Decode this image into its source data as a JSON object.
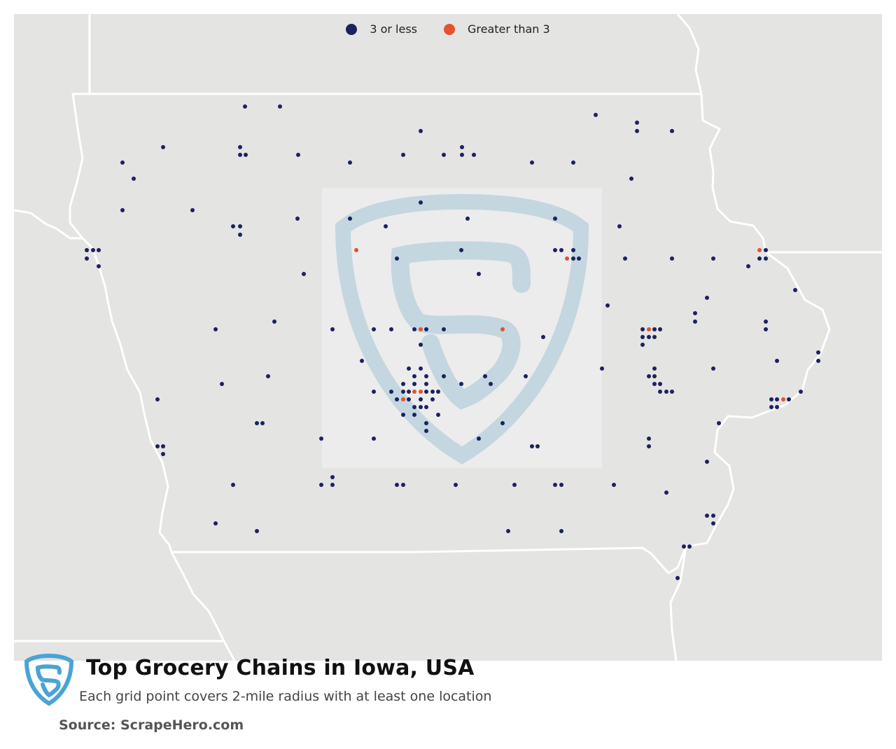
{
  "title": "Top Grocery Chains in Iowa, USA",
  "subtitle": "Each grid point covers 2-mile radius with at least one location",
  "source": "Source: ScrapeHero.com",
  "logo_icon": "scrapehero-shield-icon",
  "watermark_icon": "scrapehero-shield-watermark-icon",
  "colors": {
    "low": "#1b2260",
    "high": "#e5532c",
    "land": "#e4e4e3",
    "border": "#ffffff",
    "brand": "#4aa3d5"
  },
  "legend": [
    {
      "label": "3 or less",
      "color": "#1b2260"
    },
    {
      "label": "Greater than 3",
      "color": "#e5532c"
    }
  ],
  "points_low": [
    [
      350,
      152
    ],
    [
      400,
      152
    ],
    [
      851,
      164
    ],
    [
      910,
      175
    ],
    [
      601,
      187
    ],
    [
      910,
      187
    ],
    [
      960,
      187
    ],
    [
      233,
      210
    ],
    [
      343,
      210
    ],
    [
      660,
      210
    ],
    [
      343,
      221
    ],
    [
      351,
      221
    ],
    [
      426,
      221
    ],
    [
      576,
      221
    ],
    [
      634,
      221
    ],
    [
      660,
      221
    ],
    [
      677,
      221
    ],
    [
      175,
      232
    ],
    [
      500,
      232
    ],
    [
      760,
      232
    ],
    [
      819,
      232
    ],
    [
      191,
      255
    ],
    [
      902,
      255
    ],
    [
      601,
      289
    ],
    [
      175,
      300
    ],
    [
      275,
      300
    ],
    [
      425,
      312
    ],
    [
      500,
      312
    ],
    [
      668,
      312
    ],
    [
      793,
      312
    ],
    [
      333,
      323
    ],
    [
      343,
      323
    ],
    [
      551,
      323
    ],
    [
      885,
      323
    ],
    [
      343,
      335
    ],
    [
      124,
      357
    ],
    [
      133,
      357
    ],
    [
      141,
      357
    ],
    [
      659,
      357
    ],
    [
      793,
      357
    ],
    [
      802,
      357
    ],
    [
      819,
      357
    ],
    [
      1094,
      357
    ],
    [
      124,
      369
    ],
    [
      567,
      369
    ],
    [
      819,
      369
    ],
    [
      827,
      369
    ],
    [
      893,
      369
    ],
    [
      960,
      369
    ],
    [
      1019,
      369
    ],
    [
      1085,
      369
    ],
    [
      1094,
      369
    ],
    [
      141,
      380
    ],
    [
      1069,
      380
    ],
    [
      684,
      391
    ],
    [
      434,
      391
    ],
    [
      1136,
      414
    ],
    [
      1010,
      425
    ],
    [
      868,
      436
    ],
    [
      993,
      447
    ],
    [
      392,
      459
    ],
    [
      993,
      459
    ],
    [
      1094,
      459
    ],
    [
      308,
      470
    ],
    [
      475,
      470
    ],
    [
      534,
      470
    ],
    [
      559,
      470
    ],
    [
      592,
      470
    ],
    [
      609,
      470
    ],
    [
      634,
      470
    ],
    [
      918,
      470
    ],
    [
      935,
      470
    ],
    [
      943,
      470
    ],
    [
      1094,
      470
    ],
    [
      776,
      481
    ],
    [
      918,
      481
    ],
    [
      927,
      481
    ],
    [
      935,
      481
    ],
    [
      601,
      492
    ],
    [
      918,
      492
    ],
    [
      1169,
      503
    ],
    [
      517,
      515
    ],
    [
      1110,
      515
    ],
    [
      1169,
      515
    ],
    [
      584,
      526
    ],
    [
      601,
      526
    ],
    [
      860,
      526
    ],
    [
      935,
      526
    ],
    [
      1019,
      526
    ],
    [
      383,
      537
    ],
    [
      592,
      537
    ],
    [
      609,
      537
    ],
    [
      634,
      537
    ],
    [
      693,
      537
    ],
    [
      751,
      537
    ],
    [
      927,
      537
    ],
    [
      935,
      537
    ],
    [
      317,
      548
    ],
    [
      576,
      548
    ],
    [
      592,
      548
    ],
    [
      609,
      548
    ],
    [
      659,
      548
    ],
    [
      701,
      548
    ],
    [
      935,
      548
    ],
    [
      943,
      548
    ],
    [
      534,
      559
    ],
    [
      559,
      559
    ],
    [
      576,
      559
    ],
    [
      584,
      559
    ],
    [
      609,
      559
    ],
    [
      618,
      559
    ],
    [
      626,
      559
    ],
    [
      943,
      559
    ],
    [
      952,
      559
    ],
    [
      960,
      559
    ],
    [
      1144,
      559
    ],
    [
      225,
      570
    ],
    [
      567,
      570
    ],
    [
      584,
      570
    ],
    [
      601,
      570
    ],
    [
      618,
      570
    ],
    [
      1102,
      570
    ],
    [
      1110,
      570
    ],
    [
      1127,
      570
    ],
    [
      592,
      581
    ],
    [
      601,
      581
    ],
    [
      609,
      581
    ],
    [
      1102,
      581
    ],
    [
      1110,
      581
    ],
    [
      576,
      592
    ],
    [
      592,
      592
    ],
    [
      626,
      592
    ],
    [
      367,
      604
    ],
    [
      375,
      604
    ],
    [
      609,
      604
    ],
    [
      718,
      604
    ],
    [
      1027,
      604
    ],
    [
      609,
      615
    ],
    [
      459,
      626
    ],
    [
      534,
      626
    ],
    [
      684,
      626
    ],
    [
      927,
      626
    ],
    [
      225,
      637
    ],
    [
      233,
      637
    ],
    [
      760,
      637
    ],
    [
      768,
      637
    ],
    [
      927,
      637
    ],
    [
      233,
      648
    ],
    [
      1010,
      659
    ],
    [
      475,
      681
    ],
    [
      333,
      692
    ],
    [
      459,
      692
    ],
    [
      475,
      692
    ],
    [
      567,
      692
    ],
    [
      576,
      692
    ],
    [
      651,
      692
    ],
    [
      735,
      692
    ],
    [
      793,
      692
    ],
    [
      802,
      692
    ],
    [
      877,
      692
    ],
    [
      952,
      703
    ],
    [
      1010,
      736
    ],
    [
      1019,
      736
    ],
    [
      308,
      747
    ],
    [
      1019,
      747
    ],
    [
      367,
      758
    ],
    [
      726,
      758
    ],
    [
      802,
      758
    ],
    [
      977,
      780
    ],
    [
      985,
      780
    ],
    [
      968,
      825
    ]
  ],
  "points_high": [
    [
      509,
      357
    ],
    [
      810,
      369
    ],
    [
      601,
      470
    ],
    [
      718,
      470
    ],
    [
      927,
      470
    ],
    [
      592,
      559
    ],
    [
      601,
      559
    ],
    [
      576,
      570
    ],
    [
      1119,
      570
    ],
    [
      1085,
      357
    ]
  ]
}
